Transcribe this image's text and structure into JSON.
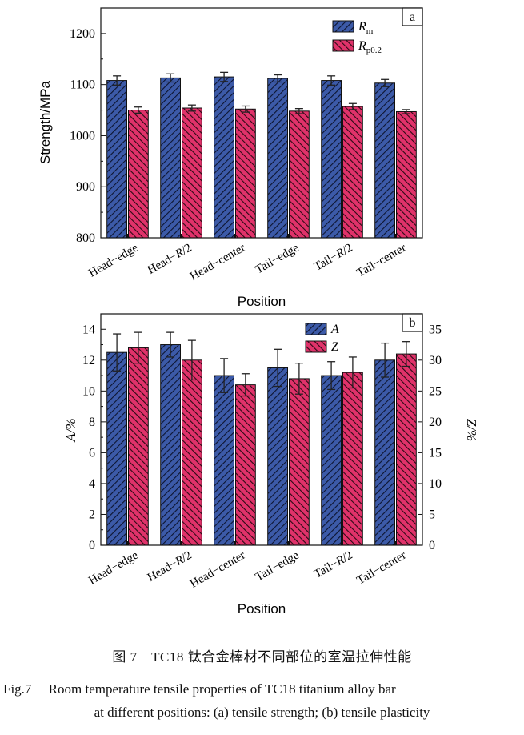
{
  "chart_data": [
    {
      "type": "bar",
      "panel_label": "a",
      "categories": [
        "Head−edge",
        "Head−R/2",
        "Head−center",
        "Tail−edge",
        "Tail−R/2",
        "Tail−center"
      ],
      "category_labels": [
        {
          "pre": "Head−edge",
          "ital": "",
          "post": ""
        },
        {
          "pre": "Head−",
          "ital": "R",
          "post": "/2"
        },
        {
          "pre": "Head−center",
          "ital": "",
          "post": ""
        },
        {
          "pre": "Tail−edge",
          "ital": "",
          "post": ""
        },
        {
          "pre": "Tail−",
          "ital": "R",
          "post": "/2"
        },
        {
          "pre": "Tail−center",
          "ital": "",
          "post": ""
        }
      ],
      "series": [
        {
          "name": "Rm",
          "sym": "R",
          "sub": "m",
          "axis": "left",
          "color": "#3c5aa8",
          "values": [
            1108,
            1113,
            1115,
            1112,
            1108,
            1103
          ],
          "errors": [
            9,
            8,
            9,
            7,
            9,
            7
          ]
        },
        {
          "name": "Rp0.2",
          "sym": "R",
          "sub": "p0.2",
          "axis": "left",
          "color": "#e0326a",
          "values": [
            1050,
            1054,
            1052,
            1048,
            1057,
            1047
          ],
          "errors": [
            6,
            6,
            6,
            5,
            6,
            4
          ]
        }
      ],
      "title": "",
      "xlabel": "Position",
      "ylabel": "Strength/MPa",
      "ylim": [
        800,
        1250
      ],
      "yticks": [
        800,
        900,
        1000,
        1100,
        1200
      ],
      "legend": "top-right"
    },
    {
      "type": "bar",
      "panel_label": "b",
      "categories": [
        "Head−edge",
        "Head−R/2",
        "Head−center",
        "Tail−edge",
        "Tail−R/2",
        "Tail−center"
      ],
      "category_labels": [
        {
          "pre": "Head−edge",
          "ital": "",
          "post": ""
        },
        {
          "pre": "Head−",
          "ital": "R",
          "post": "/2"
        },
        {
          "pre": "Head−center",
          "ital": "",
          "post": ""
        },
        {
          "pre": "Tail−edge",
          "ital": "",
          "post": ""
        },
        {
          "pre": "Tail−",
          "ital": "R",
          "post": "/2"
        },
        {
          "pre": "Tail−center",
          "ital": "",
          "post": ""
        }
      ],
      "series": [
        {
          "name": "A",
          "sym": "A",
          "sub": "",
          "axis": "left",
          "color": "#3c5aa8",
          "values": [
            12.5,
            13.0,
            11.0,
            11.5,
            11.0,
            12.0
          ],
          "errors": [
            1.2,
            0.8,
            1.1,
            1.2,
            0.9,
            1.1
          ]
        },
        {
          "name": "Z",
          "sym": "Z",
          "sub": "",
          "axis": "right",
          "color": "#e0326a",
          "values": [
            32.0,
            30.0,
            26.0,
            27.0,
            28.0,
            31.0
          ],
          "errors": [
            2.5,
            3.2,
            1.8,
            2.5,
            2.5,
            2.0
          ]
        }
      ],
      "title": "",
      "xlabel": "Position",
      "ylabel": "A/%",
      "y2label": "Z/%",
      "ylim": [
        0,
        15
      ],
      "yticks": [
        0,
        2,
        4,
        6,
        8,
        10,
        12,
        14
      ],
      "y2lim": [
        0,
        37.5
      ],
      "y2ticks": [
        0,
        5,
        10,
        15,
        20,
        25,
        30,
        35
      ],
      "legend": "top-right"
    }
  ],
  "captions": {
    "zh": "图 7　TC18 钛合金棒材不同部位的室温拉伸性能",
    "en_line1": "Fig.7　 Room temperature tensile properties of TC18 titanium alloy bar",
    "en_line2": "at different positions: (a) tensile strength; (b) tensile plasticity"
  }
}
